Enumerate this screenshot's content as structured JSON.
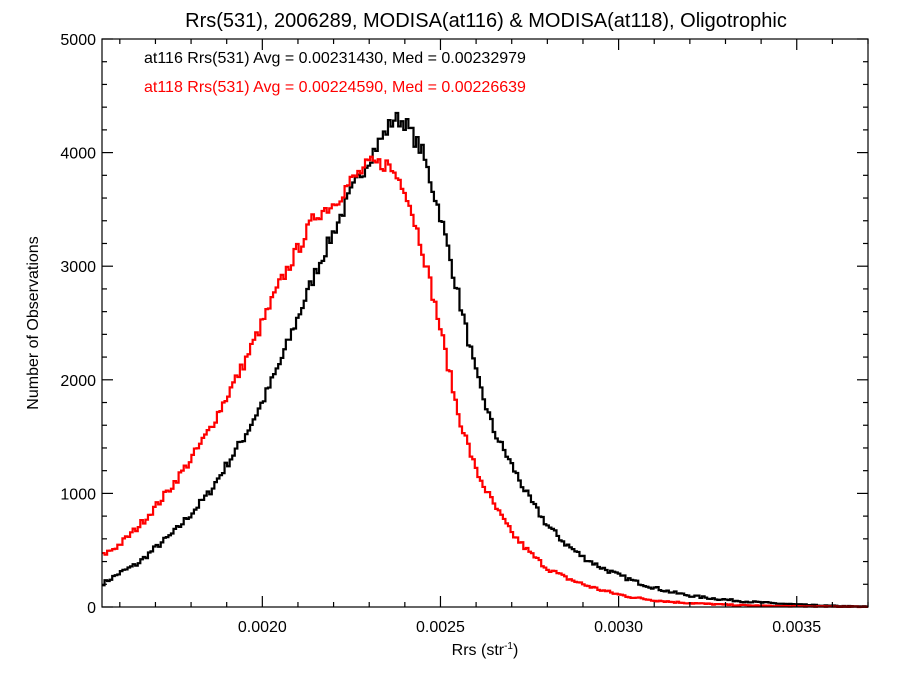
{
  "chart_data": {
    "type": "line",
    "title": "Rrs(531), 2006289, MODISA(at116) & MODISA(at118), Oligotrophic",
    "xlabel": "Rrs (str",
    "xlabel_sup": "-1",
    "xlabel_close": ")",
    "ylabel": "Number of Observations",
    "xlim": [
      0.00155,
      0.0037
    ],
    "ylim": [
      0,
      5000
    ],
    "x_ticks": [
      {
        "value": 0.002,
        "label": "0.0020"
      },
      {
        "value": 0.0025,
        "label": "0.0025"
      },
      {
        "value": 0.003,
        "label": "0.0030"
      },
      {
        "value": 0.0035,
        "label": "0.0035"
      }
    ],
    "y_ticks": [
      {
        "value": 0,
        "label": "0"
      },
      {
        "value": 1000,
        "label": "1000"
      },
      {
        "value": 2000,
        "label": "2000"
      },
      {
        "value": 3000,
        "label": "3000"
      },
      {
        "value": 4000,
        "label": "4000"
      },
      {
        "value": 5000,
        "label": "5000"
      }
    ],
    "grid": false,
    "legend_position": "top-left",
    "series": [
      {
        "label": "at116 Rrs(531) Avg = 0.00231430, Med = 0.00232979",
        "color": "#000000",
        "x": [
          0.00155,
          0.0016,
          0.00165,
          0.0017,
          0.00175,
          0.0018,
          0.00185,
          0.0019,
          0.00195,
          0.002,
          0.00205,
          0.0021,
          0.00215,
          0.0022,
          0.00225,
          0.0023,
          0.00235,
          0.00237,
          0.0024,
          0.00245,
          0.0025,
          0.00255,
          0.0026,
          0.00265,
          0.0027,
          0.00275,
          0.0028,
          0.00285,
          0.0029,
          0.00295,
          0.003,
          0.00305,
          0.0031,
          0.00315,
          0.0032,
          0.00325,
          0.0033,
          0.00335,
          0.0034,
          0.00345,
          0.0035,
          0.00355,
          0.0036,
          0.00365,
          0.0037
        ],
        "y": [
          200,
          300,
          380,
          520,
          650,
          820,
          1000,
          1250,
          1500,
          1800,
          2150,
          2550,
          2950,
          3300,
          3650,
          3950,
          4200,
          4300,
          4270,
          4000,
          3450,
          2750,
          2050,
          1550,
          1250,
          950,
          720,
          560,
          440,
          350,
          280,
          220,
          170,
          130,
          100,
          80,
          65,
          50,
          40,
          30,
          22,
          15,
          10,
          6,
          4
        ]
      },
      {
        "label": "at118 Rrs(531) Avg = 0.00224590, Med = 0.00226639",
        "color": "#ff0000",
        "x": [
          0.00155,
          0.0016,
          0.00165,
          0.0017,
          0.00175,
          0.0018,
          0.00185,
          0.0019,
          0.00195,
          0.002,
          0.00205,
          0.0021,
          0.00215,
          0.0022,
          0.00225,
          0.0023,
          0.00235,
          0.0024,
          0.00245,
          0.0025,
          0.00255,
          0.0026,
          0.00265,
          0.0027,
          0.00275,
          0.0028,
          0.00285,
          0.0029,
          0.00295,
          0.003,
          0.00305,
          0.0031,
          0.00315,
          0.0032,
          0.00325,
          0.0033,
          0.00335,
          0.0034,
          0.00345,
          0.0035,
          0.00355,
          0.0036,
          0.00365,
          0.0037
        ],
        "y": [
          450,
          550,
          700,
          880,
          1080,
          1300,
          1550,
          1850,
          2150,
          2500,
          2850,
          3150,
          3450,
          3550,
          3750,
          3900,
          3900,
          3700,
          3150,
          2450,
          1700,
          1200,
          900,
          650,
          480,
          340,
          260,
          200,
          150,
          110,
          80,
          60,
          45,
          35,
          27,
          20,
          15,
          11,
          8,
          6,
          4,
          3,
          2,
          1
        ]
      }
    ]
  }
}
